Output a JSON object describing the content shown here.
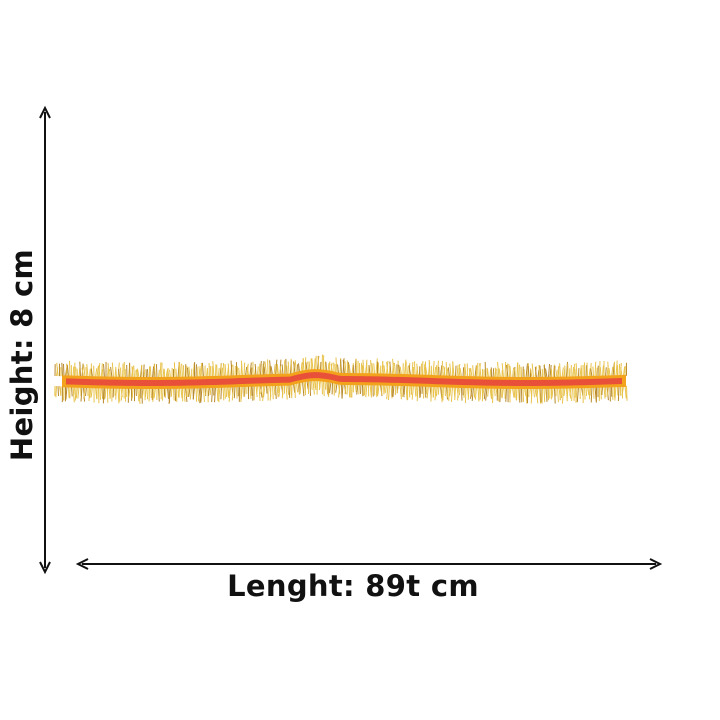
{
  "product": {
    "name_icon": "tinsel-garland-image",
    "colors": {
      "band": "#e8503a",
      "fringe": "#e8c24a",
      "trim": "#f3a21c"
    }
  },
  "dimensions": {
    "height_label": "Height: 8 cm",
    "length_label": "Lenght: 89t cm",
    "arrow_color": "#111111"
  }
}
